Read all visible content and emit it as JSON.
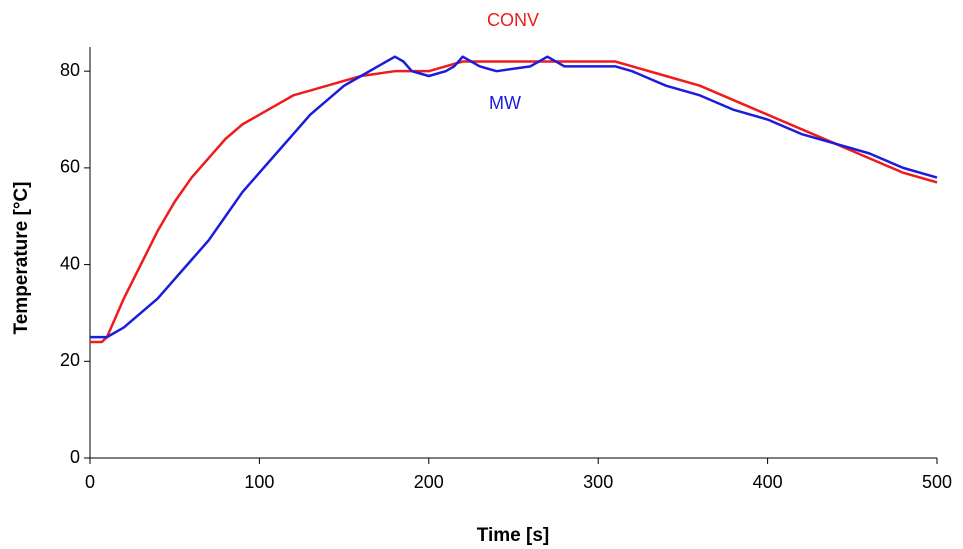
{
  "chart_data": {
    "type": "line",
    "x_label": "Time [s]",
    "y_label": "Temperature [°C]",
    "xlim": [
      0,
      500
    ],
    "xticks": [
      0,
      100,
      200,
      300,
      400,
      500
    ],
    "ylim": [
      0,
      85
    ],
    "yticks": [
      0,
      20,
      40,
      60,
      80
    ],
    "grid": false,
    "series": [
      {
        "name": "CONV",
        "color": "#ee1c1c",
        "x": [
          0,
          7,
          10,
          15,
          20,
          30,
          40,
          50,
          60,
          70,
          80,
          90,
          100,
          110,
          120,
          130,
          140,
          150,
          160,
          170,
          180,
          200,
          210,
          220,
          300,
          310,
          320,
          340,
          360,
          380,
          400,
          420,
          440,
          460,
          480,
          500
        ],
        "values": [
          24,
          24,
          25,
          29,
          33,
          40,
          47,
          53,
          58,
          62,
          66,
          69,
          71,
          73,
          75,
          76,
          77,
          78,
          79,
          79.5,
          80,
          80,
          81,
          82,
          82,
          82,
          81,
          79,
          77,
          74,
          71,
          68,
          65,
          62,
          59,
          57
        ]
      },
      {
        "name": "MW",
        "color": "#1c1cdc",
        "x": [
          0,
          10,
          20,
          30,
          40,
          50,
          60,
          70,
          80,
          90,
          100,
          110,
          120,
          130,
          140,
          150,
          160,
          170,
          180,
          185,
          190,
          200,
          210,
          215,
          220,
          230,
          240,
          260,
          270,
          280,
          310,
          320,
          340,
          360,
          380,
          400,
          420,
          440,
          460,
          480,
          500
        ],
        "values": [
          25,
          25,
          27,
          30,
          33,
          37,
          41,
          45,
          50,
          55,
          59,
          63,
          67,
          71,
          74,
          77,
          79,
          81,
          83,
          82,
          80,
          79,
          80,
          81,
          83,
          81,
          80,
          81,
          83,
          81,
          81,
          80,
          77,
          75,
          72,
          70,
          67,
          65,
          63,
          60,
          58
        ]
      }
    ]
  }
}
